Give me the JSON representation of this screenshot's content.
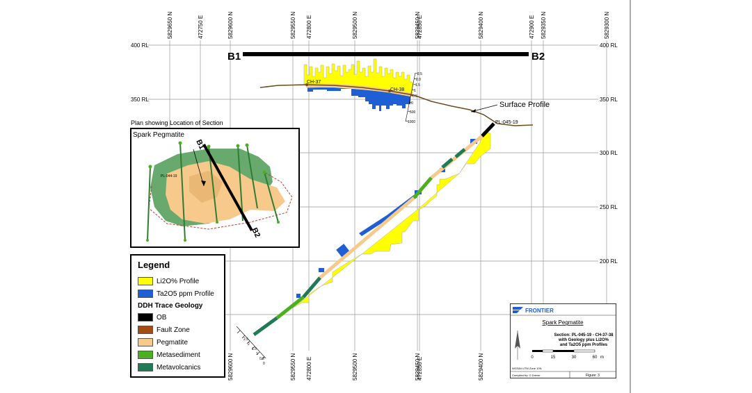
{
  "map": {
    "section_start_label": "B1",
    "section_end_label": "B2",
    "rl_labels": [
      "400 RL",
      "350 RL",
      "300 RL",
      "250 RL",
      "200 RL"
    ],
    "northing_labels": [
      "5829650 N",
      "5829600 N",
      "5829550 N",
      "5829500 N",
      "5829450 N",
      "5829400 N",
      "5829350 N",
      "5829300 N"
    ],
    "easting_labels": [
      "472750 E",
      "472800 E",
      "472850 E",
      "472900 E"
    ],
    "surface_profile_label": "Surface Profile",
    "drillhole_label": "PL-045-19",
    "trench_labels": [
      "CH-37",
      "CH-38"
    ],
    "scale_tick_labels": [
      "2.5",
      "2.0",
      "1.5",
      "1",
      "0.5",
      "0",
      "500",
      "1000"
    ],
    "lower_scale_labels": [
      "2.5",
      "2",
      "1.5",
      "1",
      "0.5",
      "0"
    ]
  },
  "inset": {
    "heading": "Plan showing Location of Section",
    "title": "Spark Pegmatite",
    "hole_label": "PL-044-19",
    "b1_label": "B1",
    "b2_label": "B2"
  },
  "legend": {
    "title": "Legend",
    "subheading": "DDH Trace Geology",
    "items": [
      {
        "label": "Li2O% Profile",
        "color": "#ffff00"
      },
      {
        "label": "Ta2O5 ppm Profile",
        "color": "#1f5fd6"
      },
      {
        "label": "OB",
        "color": "#000000"
      },
      {
        "label": "Fault Zone",
        "color": "#a64b12"
      },
      {
        "label": "Pegmatite",
        "color": "#f7c98a"
      },
      {
        "label": "Metasediment",
        "color": "#4caf1f"
      },
      {
        "label": "Metavolcanics",
        "color": "#1f7a55"
      }
    ]
  },
  "title_block": {
    "company": "FRONTIER",
    "project": "Spark Pegmatite",
    "section_line1": "Section: PL-045-19 - CH-37-38",
    "section_line2": "with Geology plus Li2O%",
    "section_line3": "and Ta2O5 ppm Profiles",
    "scale_labels": [
      "0",
      "15",
      "30",
      "60"
    ],
    "scale_unit": "m",
    "projection": "WGS84 UTM Zone 10N",
    "compiled_by": "Compiled by: G Drever",
    "figure": "Figure: 3"
  }
}
